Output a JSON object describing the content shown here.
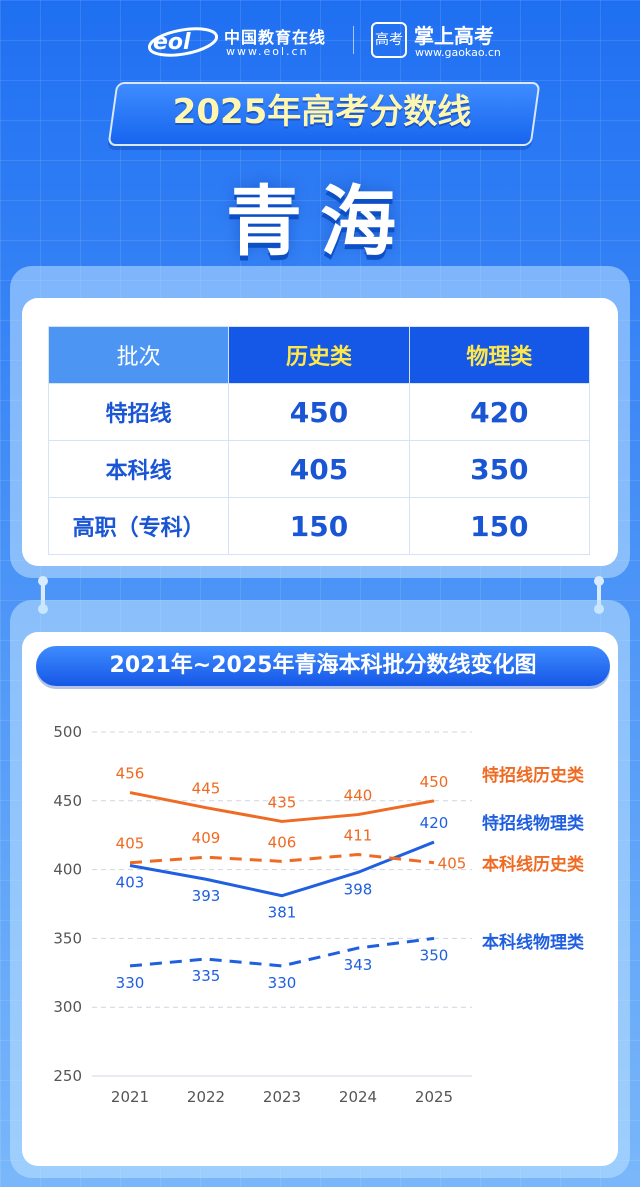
{
  "header": {
    "eol_name": "中国教育在线",
    "eol_url": "www.eol.cn",
    "gaokao_mark": "高考",
    "gaokao_name": "掌上高考",
    "gaokao_url": "www.gaokao.cn"
  },
  "title": "2025年高考分数线",
  "province": "青海",
  "table": {
    "headers": [
      "批次",
      "历史类",
      "物理类"
    ],
    "rows": [
      {
        "label": "特招线",
        "history": "450",
        "physics": "420"
      },
      {
        "label": "本科线",
        "history": "405",
        "physics": "350"
      },
      {
        "label": "高职（专科）",
        "history": "150",
        "physics": "150"
      }
    ]
  },
  "chart_data": {
    "type": "line",
    "title": "2021年~2025年青海本科批分数线变化图",
    "categories": [
      "2021",
      "2022",
      "2023",
      "2024",
      "2025"
    ],
    "xlabel": "",
    "ylabel": "",
    "ylim": [
      250,
      500
    ],
    "yticks": [
      500,
      450,
      400,
      350,
      300,
      250
    ],
    "grid": "horizontal dashed",
    "legend": "right-inline",
    "series": [
      {
        "name": "特招线历史类",
        "values": [
          456,
          445,
          435,
          440,
          450
        ],
        "color": "#ef6a22",
        "dash": false
      },
      {
        "name": "特招线物理类",
        "values": [
          403,
          393,
          381,
          398,
          420
        ],
        "color": "#1f5fe0",
        "dash": false
      },
      {
        "name": "本科线历史类",
        "values": [
          405,
          409,
          406,
          411,
          405
        ],
        "color": "#ef6a22",
        "dash": true
      },
      {
        "name": "本科线物理类",
        "values": [
          330,
          335,
          330,
          343,
          350
        ],
        "color": "#1f5fe0",
        "dash": true
      }
    ]
  },
  "colors": {
    "brand_blue": "#1557e6",
    "header_yellow": "#ffe84a",
    "orange": "#ef6a22",
    "blue": "#1f5fe0"
  }
}
